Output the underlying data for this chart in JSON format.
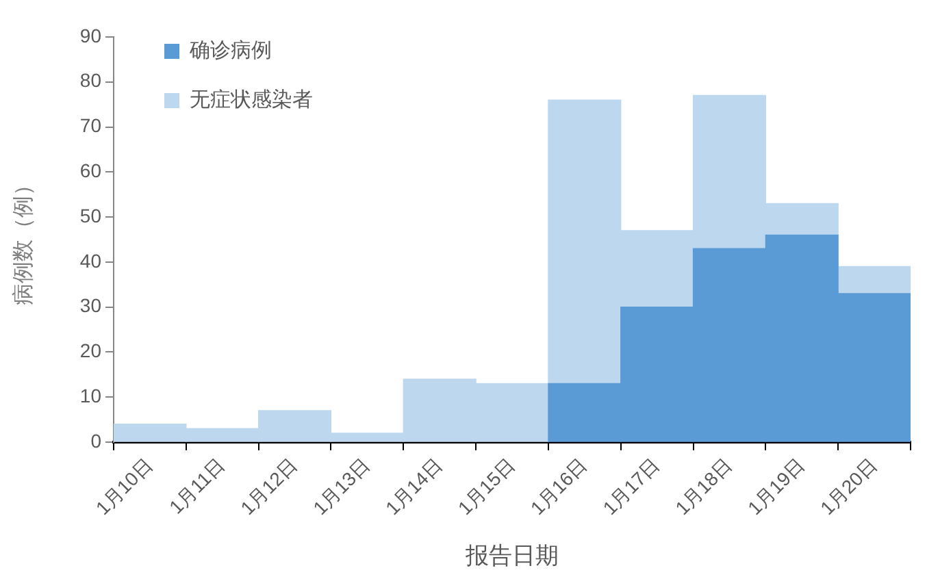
{
  "chart_data": {
    "type": "bar",
    "stacked": true,
    "xlabel": "报告日期",
    "ylabel": "病例数（例）",
    "categories": [
      "1月10日",
      "1月11日",
      "1月12日",
      "1月13日",
      "1月14日",
      "1月15日",
      "1月16日",
      "1月17日",
      "1月18日",
      "1月19日",
      "1月20日"
    ],
    "series": [
      {
        "name": "确诊病例",
        "color": "#5b9bd5",
        "values": [
          null,
          null,
          null,
          null,
          null,
          null,
          13,
          30,
          43,
          46,
          33
        ]
      },
      {
        "name": "无症状感染者",
        "color": "#bdd7ee",
        "values": [
          4,
          3,
          7,
          2,
          14,
          13,
          63,
          17,
          34,
          7,
          6
        ]
      }
    ],
    "ylim": [
      0,
      90
    ],
    "yticks": [
      0,
      10,
      20,
      30,
      40,
      50,
      60,
      70,
      80,
      90
    ],
    "legend": "top left"
  }
}
